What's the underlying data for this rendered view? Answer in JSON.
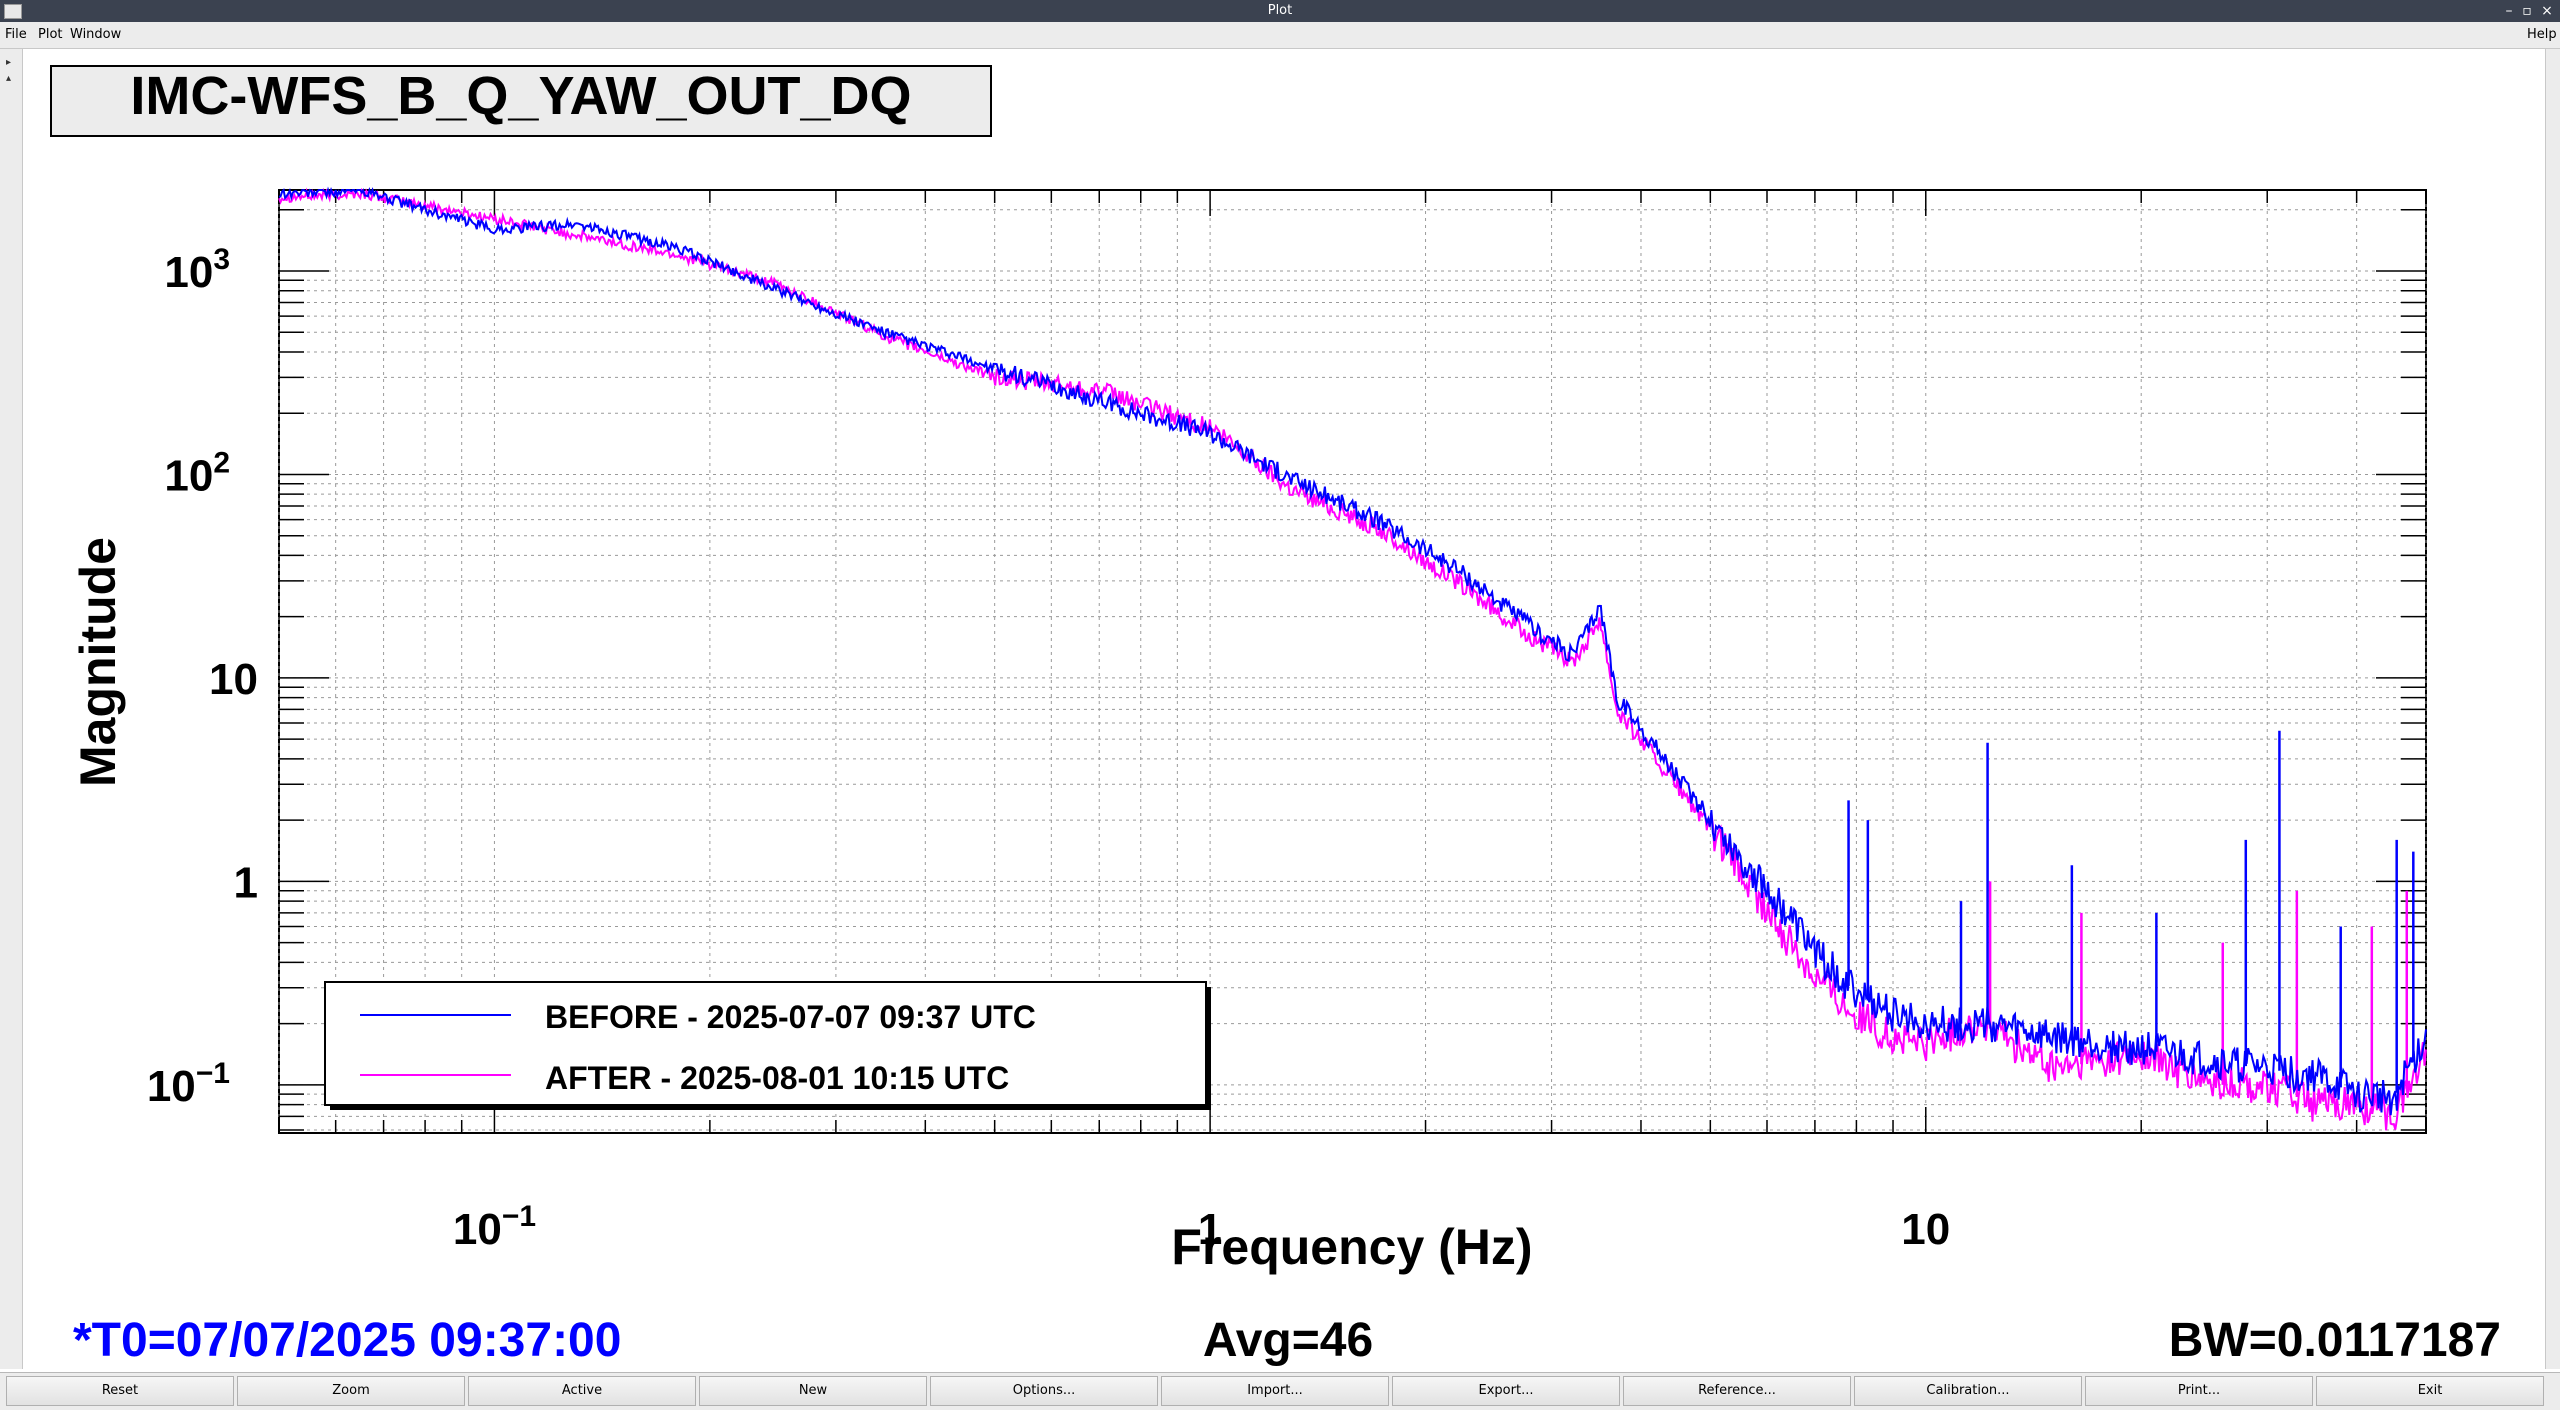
{
  "window": {
    "title": "Plot"
  },
  "menu": {
    "items": [
      "File",
      "Plot",
      "Window"
    ],
    "help": "Help"
  },
  "plot": {
    "channel_title": "IMC-WFS_B_Q_YAW_OUT_DQ",
    "t0": "*T0=07/07/2025 09:37:00",
    "avg": "Avg=46",
    "bw": "BW=0.0117187"
  },
  "colors": {
    "before": "#0000ff",
    "after": "#ff00ff",
    "t0_text": "#0000ff"
  },
  "chart_data": {
    "type": "line",
    "xlabel": "Frequency (Hz)",
    "ylabel": "Magnitude",
    "xscale": "log",
    "yscale": "log",
    "xlim": [
      0.05,
      50
    ],
    "ylim": [
      0.058,
      2500
    ],
    "grid": true,
    "legend_position": "bottom-left",
    "x_ticks": [
      {
        "value": 0.1,
        "base": "10",
        "exp": "−1"
      },
      {
        "value": 1,
        "label": "1"
      },
      {
        "value": 10,
        "label": "10"
      }
    ],
    "y_ticks": [
      {
        "value": 0.1,
        "base": "10",
        "exp": "−1"
      },
      {
        "value": 1,
        "label": "1"
      },
      {
        "value": 10,
        "label": "10"
      },
      {
        "value": 100,
        "base": "10",
        "exp": "2"
      },
      {
        "value": 1000,
        "base": "10",
        "exp": "3"
      }
    ],
    "series": [
      {
        "name": "BEFORE - 2025-07-07 09:37 UTC",
        "color": "#0000ff",
        "x": [
          0.05,
          0.065,
          0.08,
          0.1,
          0.13,
          0.18,
          0.25,
          0.35,
          0.5,
          0.7,
          1.0,
          1.3,
          1.7,
          2.2,
          2.8,
          3.2,
          3.4,
          3.5,
          3.6,
          3.7,
          4.2,
          5,
          6,
          7,
          8,
          9,
          10,
          12,
          15,
          20,
          25,
          30,
          35,
          40,
          45,
          50
        ],
        "y": [
          2400,
          2500,
          2000,
          1600,
          1700,
          1300,
          800,
          500,
          330,
          230,
          160,
          95,
          60,
          35,
          18,
          13,
          18,
          23,
          14,
          8,
          4.5,
          2.0,
          0.9,
          0.45,
          0.28,
          0.22,
          0.2,
          0.2,
          0.17,
          0.15,
          0.13,
          0.12,
          0.11,
          0.09,
          0.085,
          0.17
        ],
        "spikes": [
          {
            "x": 7.8,
            "y": 2.5
          },
          {
            "x": 8.3,
            "y": 2.0
          },
          {
            "x": 12.2,
            "y": 4.8
          },
          {
            "x": 11.2,
            "y": 0.8
          },
          {
            "x": 16,
            "y": 1.2
          },
          {
            "x": 21,
            "y": 0.7
          },
          {
            "x": 28,
            "y": 1.6
          },
          {
            "x": 31.2,
            "y": 5.5
          },
          {
            "x": 38,
            "y": 0.6
          },
          {
            "x": 45.5,
            "y": 1.6
          },
          {
            "x": 48,
            "y": 1.4
          }
        ]
      },
      {
        "name": "AFTER - 2025-08-01 10:15 UTC",
        "color": "#ff00ff",
        "x": [
          0.05,
          0.065,
          0.08,
          0.1,
          0.13,
          0.18,
          0.25,
          0.35,
          0.5,
          0.7,
          1.0,
          1.3,
          1.7,
          2.2,
          2.8,
          3.2,
          3.4,
          3.5,
          3.6,
          3.7,
          4.2,
          5,
          6,
          7,
          8,
          9,
          10,
          12,
          15,
          20,
          25,
          30,
          35,
          40,
          45,
          50
        ],
        "y": [
          2300,
          2400,
          2100,
          1800,
          1500,
          1200,
          850,
          480,
          300,
          260,
          170,
          85,
          55,
          30,
          16,
          12,
          16,
          20,
          12,
          7,
          4.0,
          1.8,
          0.7,
          0.35,
          0.22,
          0.17,
          0.16,
          0.2,
          0.12,
          0.14,
          0.1,
          0.1,
          0.08,
          0.08,
          0.07,
          0.15
        ],
        "spikes": [
          {
            "x": 12.3,
            "y": 1.0
          },
          {
            "x": 16.5,
            "y": 0.7
          },
          {
            "x": 26,
            "y": 0.5
          },
          {
            "x": 33,
            "y": 0.9
          },
          {
            "x": 42,
            "y": 0.6
          },
          {
            "x": 47,
            "y": 0.9
          }
        ]
      }
    ]
  },
  "toolbar": {
    "buttons": [
      "Reset",
      "Zoom",
      "Active",
      "New",
      "Options...",
      "Import...",
      "Export...",
      "Reference...",
      "Calibration...",
      "Print...",
      "Exit"
    ]
  }
}
